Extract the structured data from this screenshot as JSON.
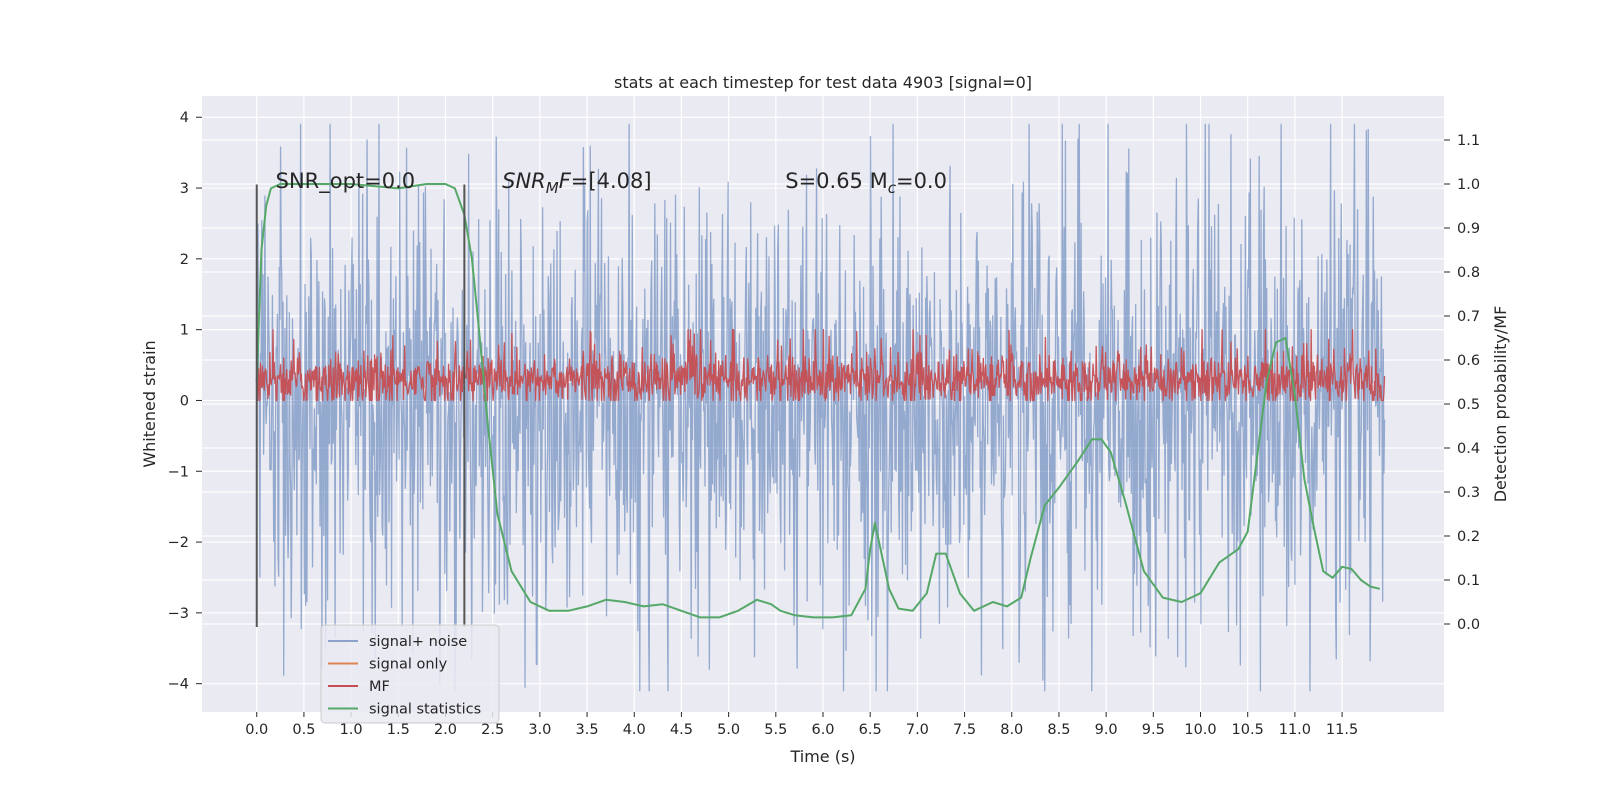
{
  "chart_data": {
    "type": "line",
    "title": "stats at each timestep for test data 4903 [signal=0]",
    "xlabel": "Time (s)",
    "ylabel_left": "Whitened strain",
    "ylabel_right": "Detection probability/MF",
    "xlim": [
      -0.58,
      12.58
    ],
    "ylim_left": [
      -4.4,
      4.3
    ],
    "ylim_right": [
      -0.2,
      1.2
    ],
    "x_ticks": [
      0.0,
      0.5,
      1.0,
      1.5,
      2.0,
      2.5,
      3.0,
      3.5,
      4.0,
      4.5,
      5.0,
      5.5,
      6.0,
      6.5,
      7.0,
      7.5,
      8.0,
      8.5,
      9.0,
      9.5,
      10.0,
      10.5,
      11.0,
      11.5
    ],
    "x_tick_labels": [
      "0.0",
      "0.5",
      "1.0",
      "1.5",
      "2.0",
      "2.5",
      "3.0",
      "3.5",
      "4.0",
      "4.5",
      "5.0",
      "5.5",
      "6.0",
      "6.5",
      "7.0",
      "7.5",
      "8.0",
      "8.5",
      "9.0",
      "9.5",
      "10.0",
      "10.5",
      "11.0",
      "11.5"
    ],
    "y_left_ticks": [
      -4,
      -3,
      -2,
      -1,
      0,
      1,
      2,
      3,
      4
    ],
    "y_left_tick_labels": [
      "−4",
      "−3",
      "−2",
      "−1",
      "0",
      "1",
      "2",
      "3",
      "4"
    ],
    "y_right_ticks": [
      0.0,
      0.1,
      0.2,
      0.3,
      0.4,
      0.5,
      0.6,
      0.7,
      0.8,
      0.9,
      1.0,
      1.1
    ],
    "y_right_tick_labels": [
      "0.0",
      "0.1",
      "0.2",
      "0.3",
      "0.4",
      "0.5",
      "0.6",
      "0.7",
      "0.8",
      "0.9",
      "1.0",
      "1.1"
    ],
    "grid": true,
    "legend_position": "lower-left",
    "annotations": [
      {
        "text": "SNR_opt=0.0",
        "x": 0.2,
        "y": 3.1
      },
      {
        "text": "SNR",
        "sub": "M",
        "tail": "F=[4.08]",
        "italic": true,
        "x": 2.6,
        "y": 3.1
      },
      {
        "text": "S=0.65   M",
        "sub": "c",
        "tail": "=0.0",
        "x": 5.6,
        "y": 3.1
      }
    ],
    "vlines": [
      {
        "x": 0.0,
        "y": [
          -3.2,
          3.05
        ],
        "color": "#555555"
      },
      {
        "x": 2.2,
        "y": [
          -3.2,
          3.05
        ],
        "color": "#555555"
      }
    ],
    "series": [
      {
        "name": "signal+ noise",
        "color": "#4c72b0",
        "axis": "left",
        "style": "dense-noise",
        "x_range": [
          0.0,
          11.95
        ],
        "envelope_typical": [
          -1.9,
          1.8
        ],
        "extremes": [
          -4.1,
          3.9
        ]
      },
      {
        "name": "signal only",
        "color": "#dd8452",
        "axis": "left",
        "x": [],
        "y": []
      },
      {
        "name": "MF",
        "color": "#c44e52",
        "axis": "left",
        "style": "dense-noise",
        "x_range": [
          0.0,
          11.95
        ],
        "envelope_typical": [
          0.05,
          0.55
        ],
        "extremes": [
          0.0,
          1.0
        ]
      },
      {
        "name": "signal statistics",
        "color": "#55a868",
        "axis": "right",
        "x": [
          0.0,
          0.05,
          0.1,
          0.15,
          0.25,
          0.5,
          1.0,
          1.5,
          1.8,
          2.0,
          2.1,
          2.2,
          2.28,
          2.35,
          2.45,
          2.55,
          2.7,
          2.9,
          3.1,
          3.3,
          3.5,
          3.7,
          3.9,
          4.1,
          4.3,
          4.5,
          4.7,
          4.9,
          5.1,
          5.3,
          5.45,
          5.55,
          5.7,
          5.9,
          6.1,
          6.3,
          6.45,
          6.5,
          6.55,
          6.6,
          6.7,
          6.8,
          6.95,
          7.1,
          7.2,
          7.3,
          7.45,
          7.6,
          7.8,
          7.95,
          8.1,
          8.2,
          8.35,
          8.5,
          8.7,
          8.85,
          8.95,
          9.05,
          9.2,
          9.4,
          9.6,
          9.8,
          10.0,
          10.2,
          10.4,
          10.5,
          10.6,
          10.7,
          10.8,
          10.9,
          11.0,
          11.1,
          11.2,
          11.3,
          11.4,
          11.5,
          11.6,
          11.7,
          11.8,
          11.9
        ],
        "y": [
          0.55,
          0.85,
          0.95,
          0.99,
          1.0,
          1.0,
          1.0,
          0.99,
          1.0,
          1.0,
          0.99,
          0.93,
          0.83,
          0.68,
          0.45,
          0.25,
          0.12,
          0.05,
          0.03,
          0.03,
          0.04,
          0.055,
          0.05,
          0.04,
          0.045,
          0.03,
          0.015,
          0.015,
          0.03,
          0.055,
          0.045,
          0.03,
          0.02,
          0.015,
          0.015,
          0.02,
          0.08,
          0.17,
          0.23,
          0.18,
          0.08,
          0.035,
          0.03,
          0.07,
          0.16,
          0.16,
          0.07,
          0.03,
          0.05,
          0.04,
          0.06,
          0.15,
          0.27,
          0.31,
          0.37,
          0.42,
          0.42,
          0.39,
          0.28,
          0.12,
          0.06,
          0.05,
          0.07,
          0.14,
          0.17,
          0.21,
          0.38,
          0.55,
          0.64,
          0.65,
          0.52,
          0.33,
          0.22,
          0.12,
          0.105,
          0.13,
          0.125,
          0.1,
          0.085,
          0.08
        ]
      }
    ]
  }
}
